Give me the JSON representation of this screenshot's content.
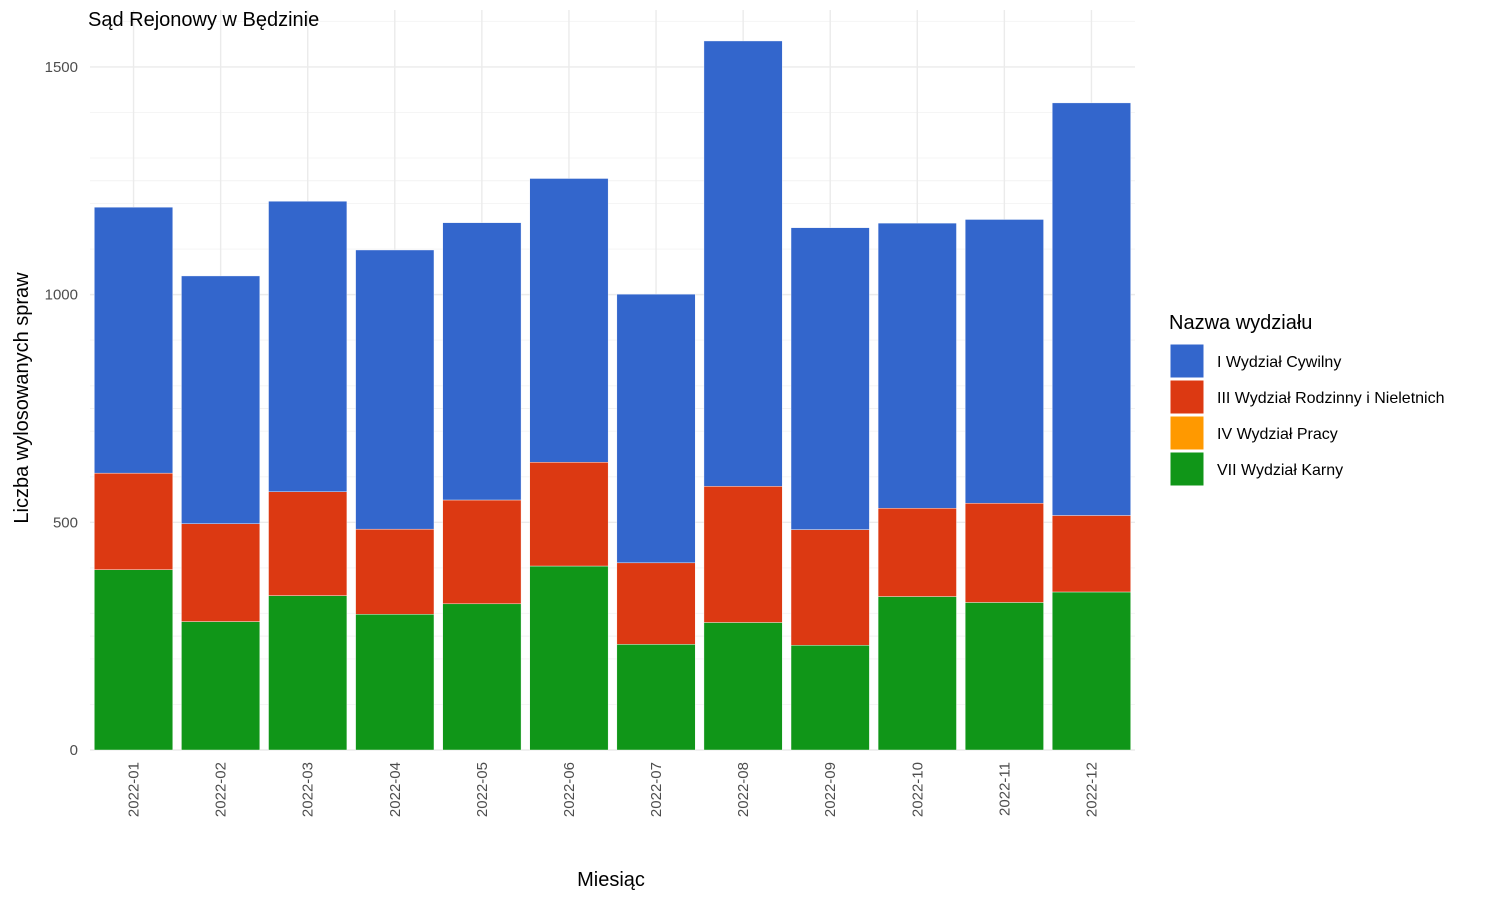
{
  "chart_data": {
    "type": "bar",
    "stacked": true,
    "title": "Sąd Rejonowy w Będzinie",
    "xlabel": "Miesiąc",
    "ylabel": "Liczba wylosowanych spraw",
    "ylim": [
      0,
      1625
    ],
    "yticks": [
      0,
      500,
      1000,
      1500
    ],
    "grid": true,
    "legend_position": "right",
    "legend_title": "Nazwa wydziału",
    "categories": [
      "2022-01",
      "2022-02",
      "2022-03",
      "2022-04",
      "2022-05",
      "2022-06",
      "2022-07",
      "2022-08",
      "2022-09",
      "2022-10",
      "2022-11",
      "2022-12"
    ],
    "series": [
      {
        "name": "I Wydział Cywilny",
        "color": "#3366cc",
        "values": [
          584,
          544,
          638,
          613,
          609,
          623,
          590,
          978,
          663,
          626,
          623,
          906
        ]
      },
      {
        "name": "III Wydział Rodzinny i Nieletnich",
        "color": "#dc3912",
        "values": [
          212,
          215,
          228,
          187,
          228,
          228,
          179,
          299,
          254,
          194,
          218,
          168
        ]
      },
      {
        "name": "IV Wydział Pracy",
        "color": "#ff9900",
        "values": [
          0,
          0,
          0,
          0,
          0,
          0,
          0,
          0,
          0,
          0,
          0,
          0
        ]
      },
      {
        "name": "VII Wydział Karny",
        "color": "#109618",
        "values": [
          396,
          282,
          339,
          298,
          321,
          404,
          232,
          280,
          230,
          337,
          324,
          347
        ]
      }
    ]
  }
}
